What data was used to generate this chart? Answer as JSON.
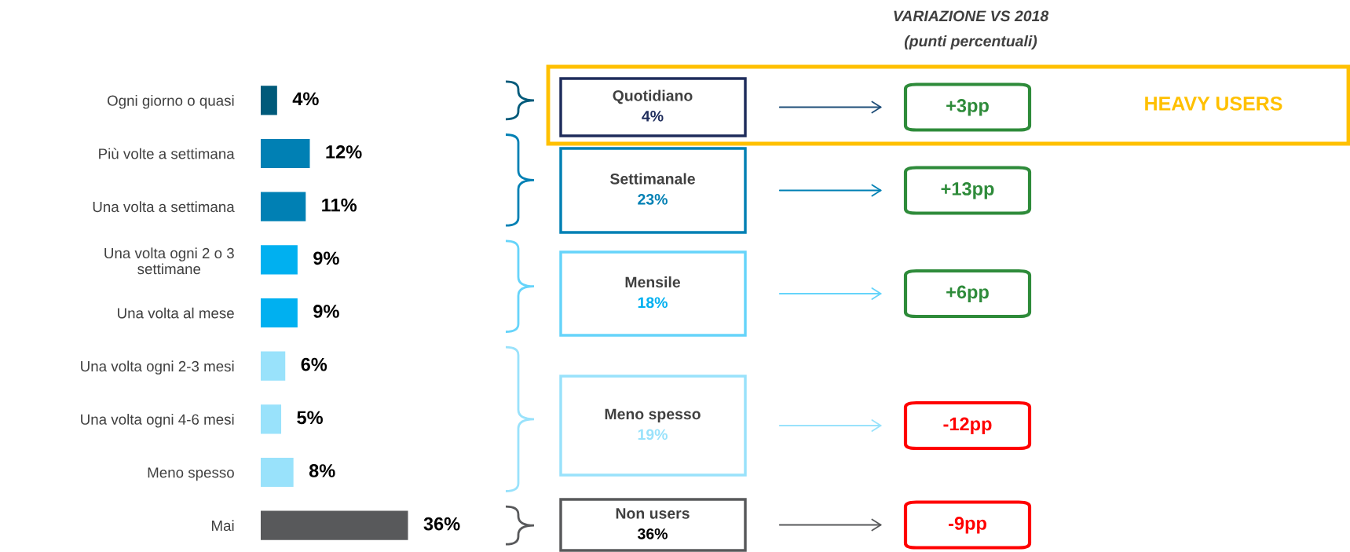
{
  "chart_data": {
    "type": "bar",
    "orientation": "horizontal",
    "categories": [
      "Ogni giorno o quasi",
      "Più volte a settimana",
      "Una volta a settimana",
      "Una volta ogni 2 o 3\nsettimane",
      "Una volta al mese",
      "Una volta ogni 2-3 mesi",
      "Una volta ogni 4-6 mesi",
      "Meno spesso",
      "Mai"
    ],
    "values": [
      4,
      12,
      11,
      9,
      9,
      6,
      5,
      8,
      36
    ],
    "colors": [
      "#005a7a",
      "#0080b4",
      "#0080b4",
      "#00b0f0",
      "#00b0f0",
      "#99e2fb",
      "#99e2fb",
      "#99e2fb",
      "#58595b"
    ],
    "value_labels": [
      "4%",
      "12%",
      "11%",
      "9%",
      "9%",
      "6%",
      "5%",
      "8%",
      "36%"
    ],
    "tick_labels": "y",
    "annotations": [
      "VARIAZIONE VS 2018",
      "(punti percentuali)",
      "Quotidiano",
      "4%",
      "Settimanale",
      "23%",
      "Mensile",
      "18%",
      "Meno spesso",
      "19%",
      "Non users",
      "36%",
      "+3pp",
      "+13pp",
      "+6pp",
      "-12pp",
      "-9pp",
      "HEAVY USERS"
    ]
  }
}
